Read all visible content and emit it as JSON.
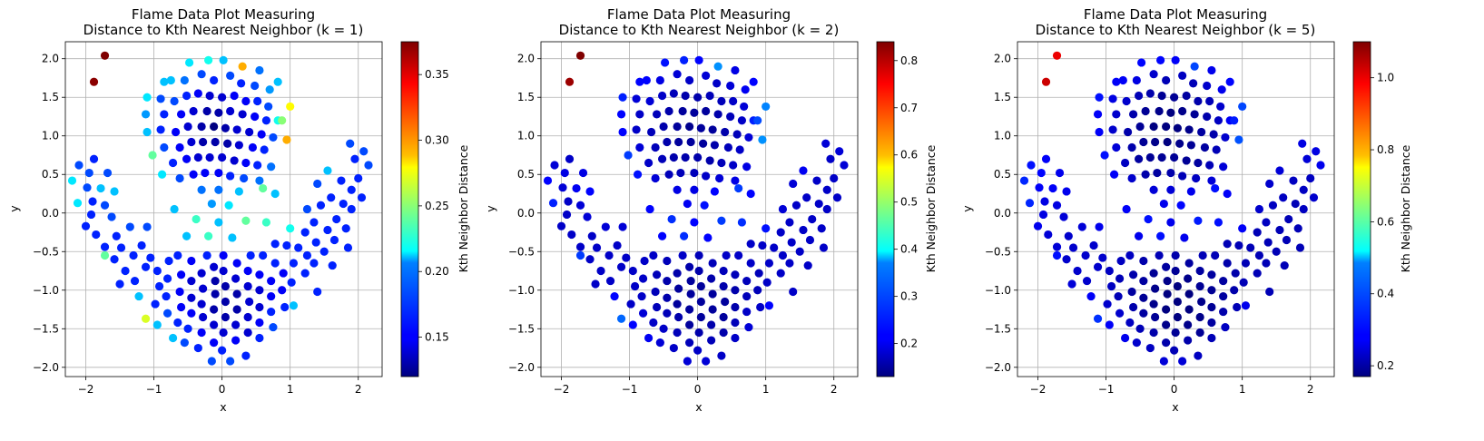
{
  "chart_data": [
    {
      "type": "scatter",
      "title": "Flame Data Plot Measuring\nDistance to Kth Nearest Neighbor (k = 1)",
      "xlabel": "x",
      "ylabel": "y",
      "xlim": [
        -2.3,
        2.35
      ],
      "ylim": [
        -2.12,
        2.22
      ],
      "xticks": [
        -2,
        -1,
        0,
        1,
        2
      ],
      "yticks": [
        -2.0,
        -1.5,
        -1.0,
        -0.5,
        0.0,
        0.5,
        1.0,
        1.5,
        2.0
      ],
      "grid": true,
      "colormap": "jet",
      "colorbar": {
        "label": "Kth Neighbor Distance",
        "min": 0.12,
        "max": 0.375,
        "ticks": [
          0.15,
          0.2,
          0.25,
          0.3,
          0.35
        ]
      }
    },
    {
      "type": "scatter",
      "title": "Flame Data Plot Measuring\nDistance to Kth Nearest Neighbor (k = 2)",
      "xlabel": "x",
      "ylabel": "y",
      "xlim": [
        -2.3,
        2.35
      ],
      "ylim": [
        -2.12,
        2.22
      ],
      "xticks": [
        -2,
        -1,
        0,
        1,
        2
      ],
      "yticks": [
        -2.0,
        -1.5,
        -1.0,
        -0.5,
        0.0,
        0.5,
        1.0,
        1.5,
        2.0
      ],
      "grid": true,
      "colormap": "jet",
      "colorbar": {
        "label": "Kth Neighbor Distance",
        "min": 0.13,
        "max": 0.84,
        "ticks": [
          0.2,
          0.3,
          0.4,
          0.5,
          0.6,
          0.7,
          0.8
        ]
      }
    },
    {
      "type": "scatter",
      "title": "Flame Data Plot Measuring\nDistance to Kth Nearest Neighbor (k = 5)",
      "xlabel": "x",
      "ylabel": "y",
      "xlim": [
        -2.3,
        2.35
      ],
      "ylim": [
        -2.12,
        2.22
      ],
      "xticks": [
        -2,
        -1,
        0,
        1,
        2
      ],
      "yticks": [
        -2.0,
        -1.5,
        -1.0,
        -0.5,
        0.0,
        0.5,
        1.0,
        1.5,
        2.0
      ],
      "grid": true,
      "colormap": "jet",
      "colorbar": {
        "label": "Kth Neighbor Distance",
        "min": 0.17,
        "max": 1.1,
        "ticks": [
          0.2,
          0.4,
          0.6,
          0.8,
          1.0
        ]
      }
    }
  ],
  "points": [
    [
      -1.72,
      2.04,
      0.375,
      0.84,
      1.0
    ],
    [
      -1.88,
      1.7,
      0.372,
      0.82,
      1.03
    ],
    [
      -2.2,
      0.42,
      0.21,
      0.22,
      0.32
    ],
    [
      -2.1,
      0.62,
      0.17,
      0.19,
      0.3
    ],
    [
      -1.95,
      0.52,
      0.17,
      0.2,
      0.29
    ],
    [
      -1.88,
      0.7,
      0.16,
      0.18,
      0.28
    ],
    [
      -1.98,
      0.33,
      0.17,
      0.19,
      0.28
    ],
    [
      -2.12,
      0.13,
      0.21,
      0.24,
      0.32
    ],
    [
      -1.9,
      0.15,
      0.16,
      0.18,
      0.26
    ],
    [
      -1.78,
      0.32,
      0.2,
      0.21,
      0.28
    ],
    [
      -1.68,
      0.52,
      0.17,
      0.2,
      0.27
    ],
    [
      -1.72,
      0.1,
      0.17,
      0.19,
      0.26
    ],
    [
      -1.92,
      -0.02,
      0.16,
      0.18,
      0.26
    ],
    [
      -2.0,
      -0.17,
      0.16,
      0.18,
      0.27
    ],
    [
      -1.85,
      -0.28,
      0.16,
      0.18,
      0.25
    ],
    [
      -1.62,
      -0.05,
      0.17,
      0.19,
      0.25
    ],
    [
      -1.58,
      0.28,
      0.2,
      0.22,
      0.27
    ],
    [
      -1.55,
      -0.3,
      0.16,
      0.18,
      0.24
    ],
    [
      -1.48,
      -0.45,
      0.16,
      0.18,
      0.24
    ],
    [
      -1.72,
      -0.44,
      0.16,
      0.18,
      0.25
    ],
    [
      -1.35,
      -0.18,
      0.17,
      0.19,
      0.25
    ],
    [
      -1.3,
      -0.55,
      0.16,
      0.18,
      0.24
    ],
    [
      -1.58,
      -0.6,
      0.16,
      0.18,
      0.24
    ],
    [
      -1.72,
      -0.55,
      0.24,
      0.26,
      0.3
    ],
    [
      -1.18,
      -0.42,
      0.16,
      0.18,
      0.24
    ],
    [
      -1.12,
      -0.7,
      0.16,
      0.18,
      0.24
    ],
    [
      -1.42,
      -0.75,
      0.16,
      0.18,
      0.24
    ],
    [
      -1.5,
      -0.92,
      0.16,
      0.18,
      0.25
    ],
    [
      -1.28,
      -0.88,
      0.16,
      0.18,
      0.24
    ],
    [
      -1.22,
      -1.08,
      0.2,
      0.22,
      0.28
    ],
    [
      -1.05,
      -0.58,
      0.16,
      0.18,
      0.24
    ],
    [
      -1.1,
      -0.18,
      0.17,
      0.19,
      0.27
    ],
    [
      -1.12,
      -1.37,
      0.27,
      0.29,
      0.33
    ],
    [
      -0.95,
      -1.45,
      0.2,
      0.22,
      0.28
    ],
    [
      -0.98,
      -1.18,
      0.16,
      0.18,
      0.24
    ],
    [
      -0.92,
      -0.95,
      0.16,
      0.18,
      0.23
    ],
    [
      -0.95,
      -0.75,
      0.16,
      0.18,
      0.23
    ],
    [
      -0.78,
      -0.62,
      0.16,
      0.18,
      0.23
    ],
    [
      -0.8,
      -0.85,
      0.16,
      0.18,
      0.22
    ],
    [
      -0.82,
      -1.08,
      0.16,
      0.18,
      0.22
    ],
    [
      -0.8,
      -1.3,
      0.17,
      0.19,
      0.24
    ],
    [
      -0.72,
      -1.62,
      0.2,
      0.21,
      0.27
    ],
    [
      -0.65,
      -1.42,
      0.16,
      0.18,
      0.23
    ],
    [
      -0.6,
      -1.22,
      0.15,
      0.17,
      0.21
    ],
    [
      -0.62,
      -1.02,
      0.15,
      0.17,
      0.2
    ],
    [
      -0.6,
      -0.8,
      0.15,
      0.17,
      0.21
    ],
    [
      -0.65,
      -0.55,
      0.16,
      0.18,
      0.23
    ],
    [
      -0.52,
      -0.3,
      0.2,
      0.22,
      0.27
    ],
    [
      -0.45,
      -0.62,
      0.15,
      0.17,
      0.21
    ],
    [
      -0.45,
      -0.88,
      0.14,
      0.16,
      0.2
    ],
    [
      -0.45,
      -1.1,
      0.14,
      0.16,
      0.19
    ],
    [
      -0.45,
      -1.3,
      0.15,
      0.17,
      0.2
    ],
    [
      -0.5,
      -1.5,
      0.16,
      0.18,
      0.22
    ],
    [
      -0.55,
      -1.68,
      0.17,
      0.19,
      0.24
    ],
    [
      -0.35,
      -1.75,
      0.16,
      0.18,
      0.23
    ],
    [
      -0.3,
      -1.55,
      0.15,
      0.17,
      0.21
    ],
    [
      -0.28,
      -1.35,
      0.14,
      0.16,
      0.19
    ],
    [
      -0.3,
      -1.18,
      0.14,
      0.15,
      0.18
    ],
    [
      -0.28,
      -0.98,
      0.14,
      0.15,
      0.18
    ],
    [
      -0.3,
      -0.78,
      0.14,
      0.16,
      0.19
    ],
    [
      -0.22,
      -0.55,
      0.16,
      0.18,
      0.22
    ],
    [
      -0.15,
      -1.92,
      0.17,
      0.19,
      0.25
    ],
    [
      -0.12,
      -1.68,
      0.15,
      0.17,
      0.21
    ],
    [
      -0.12,
      -1.45,
      0.14,
      0.15,
      0.18
    ],
    [
      -0.12,
      -1.25,
      0.13,
      0.15,
      0.17
    ],
    [
      -0.1,
      -1.05,
      0.13,
      0.15,
      0.17
    ],
    [
      -0.1,
      -0.88,
      0.13,
      0.15,
      0.18
    ],
    [
      -0.12,
      -0.7,
      0.14,
      0.16,
      0.2
    ],
    [
      0.0,
      -1.78,
      0.16,
      0.18,
      0.22
    ],
    [
      0.02,
      -1.55,
      0.14,
      0.16,
      0.19
    ],
    [
      0.05,
      -1.35,
      0.13,
      0.15,
      0.17
    ],
    [
      0.05,
      -1.15,
      0.13,
      0.15,
      0.17
    ],
    [
      0.05,
      -0.95,
      0.13,
      0.15,
      0.17
    ],
    [
      0.02,
      -0.75,
      0.14,
      0.16,
      0.19
    ],
    [
      0.02,
      -0.55,
      0.15,
      0.17,
      0.21
    ],
    [
      0.12,
      -1.92,
      0.17,
      0.19,
      0.25
    ],
    [
      0.2,
      -1.65,
      0.15,
      0.17,
      0.21
    ],
    [
      0.2,
      -1.45,
      0.14,
      0.16,
      0.18
    ],
    [
      0.22,
      -1.25,
      0.13,
      0.15,
      0.17
    ],
    [
      0.22,
      -1.05,
      0.13,
      0.15,
      0.17
    ],
    [
      0.2,
      -0.85,
      0.14,
      0.16,
      0.18
    ],
    [
      0.22,
      -0.65,
      0.15,
      0.17,
      0.2
    ],
    [
      0.35,
      -1.85,
      0.16,
      0.18,
      0.23
    ],
    [
      0.38,
      -1.55,
      0.14,
      0.16,
      0.19
    ],
    [
      0.38,
      -1.35,
      0.14,
      0.15,
      0.18
    ],
    [
      0.4,
      -1.15,
      0.14,
      0.15,
      0.18
    ],
    [
      0.38,
      -0.95,
      0.14,
      0.16,
      0.19
    ],
    [
      0.38,
      -0.75,
      0.15,
      0.17,
      0.2
    ],
    [
      0.42,
      -0.55,
      0.16,
      0.18,
      0.22
    ],
    [
      0.55,
      -1.62,
      0.16,
      0.18,
      0.22
    ],
    [
      0.55,
      -1.42,
      0.15,
      0.17,
      0.2
    ],
    [
      0.55,
      -1.22,
      0.14,
      0.16,
      0.19
    ],
    [
      0.55,
      -1.0,
      0.14,
      0.16,
      0.19
    ],
    [
      0.55,
      -0.8,
      0.15,
      0.17,
      0.2
    ],
    [
      0.6,
      -0.55,
      0.16,
      0.18,
      0.22
    ],
    [
      0.72,
      -1.28,
      0.16,
      0.18,
      0.21
    ],
    [
      0.72,
      -1.08,
      0.15,
      0.17,
      0.2
    ],
    [
      0.72,
      -0.88,
      0.15,
      0.17,
      0.2
    ],
    [
      0.78,
      -0.65,
      0.16,
      0.18,
      0.21
    ],
    [
      0.75,
      -1.48,
      0.17,
      0.19,
      0.23
    ],
    [
      0.88,
      -1.0,
      0.15,
      0.17,
      0.21
    ],
    [
      0.9,
      -0.78,
      0.15,
      0.17,
      0.21
    ],
    [
      0.92,
      -1.22,
      0.16,
      0.18,
      0.22
    ],
    [
      0.78,
      -0.4,
      0.16,
      0.18,
      0.22
    ],
    [
      1.05,
      -1.2,
      0.2,
      0.22,
      0.27
    ],
    [
      1.02,
      -0.9,
      0.16,
      0.18,
      0.22
    ],
    [
      1.05,
      -0.65,
      0.16,
      0.18,
      0.22
    ],
    [
      1.12,
      -0.45,
      0.16,
      0.18,
      0.22
    ],
    [
      0.95,
      -0.42,
      0.16,
      0.18,
      0.22
    ],
    [
      1.22,
      -0.78,
      0.16,
      0.18,
      0.22
    ],
    [
      1.25,
      -0.55,
      0.16,
      0.18,
      0.22
    ],
    [
      1.22,
      -0.25,
      0.16,
      0.18,
      0.22
    ],
    [
      1.35,
      -0.65,
      0.16,
      0.18,
      0.22
    ],
    [
      1.38,
      -0.38,
      0.16,
      0.18,
      0.22
    ],
    [
      1.35,
      -0.12,
      0.16,
      0.18,
      0.23
    ],
    [
      1.4,
      -1.02,
      0.16,
      0.18,
      0.22
    ],
    [
      1.5,
      -0.5,
      0.16,
      0.18,
      0.22
    ],
    [
      1.55,
      -0.22,
      0.16,
      0.18,
      0.22
    ],
    [
      1.45,
      0.1,
      0.16,
      0.18,
      0.23
    ],
    [
      1.62,
      -0.68,
      0.16,
      0.18,
      0.22
    ],
    [
      1.65,
      -0.35,
      0.16,
      0.18,
      0.22
    ],
    [
      1.68,
      -0.08,
      0.16,
      0.18,
      0.22
    ],
    [
      1.6,
      0.2,
      0.16,
      0.18,
      0.23
    ],
    [
      1.75,
      0.42,
      0.16,
      0.18,
      0.23
    ],
    [
      1.78,
      0.12,
      0.16,
      0.18,
      0.22
    ],
    [
      1.82,
      -0.2,
      0.16,
      0.18,
      0.22
    ],
    [
      1.85,
      -0.45,
      0.16,
      0.18,
      0.22
    ],
    [
      1.9,
      0.05,
      0.16,
      0.18,
      0.23
    ],
    [
      1.9,
      0.3,
      0.16,
      0.18,
      0.23
    ],
    [
      2.0,
      0.45,
      0.16,
      0.18,
      0.23
    ],
    [
      2.05,
      0.2,
      0.16,
      0.18,
      0.24
    ],
    [
      1.95,
      0.7,
      0.16,
      0.18,
      0.25
    ],
    [
      2.08,
      0.8,
      0.17,
      0.19,
      0.26
    ],
    [
      2.15,
      0.62,
      0.17,
      0.19,
      0.27
    ],
    [
      1.88,
      0.9,
      0.17,
      0.19,
      0.26
    ],
    [
      1.55,
      0.55,
      0.2,
      0.21,
      0.25
    ],
    [
      1.0,
      -0.2,
      0.22,
      0.23,
      0.28
    ],
    [
      1.4,
      0.38,
      0.17,
      0.19,
      0.24
    ],
    [
      1.25,
      0.05,
      0.17,
      0.19,
      0.24
    ],
    [
      -0.2,
      1.98,
      0.22,
      0.24,
      0.29
    ],
    [
      0.02,
      1.98,
      0.2,
      0.22,
      0.28
    ],
    [
      -0.48,
      1.95,
      0.21,
      0.23,
      0.29
    ],
    [
      0.3,
      1.9,
      0.3,
      0.32,
      0.35
    ],
    [
      0.55,
      1.85,
      0.18,
      0.2,
      0.27
    ],
    [
      -0.75,
      1.72,
      0.2,
      0.22,
      0.28
    ],
    [
      -0.55,
      1.72,
      0.18,
      0.2,
      0.26
    ],
    [
      -0.3,
      1.8,
      0.17,
      0.19,
      0.24
    ],
    [
      -0.12,
      1.72,
      0.16,
      0.18,
      0.22
    ],
    [
      0.12,
      1.78,
      0.17,
      0.19,
      0.23
    ],
    [
      0.28,
      1.68,
      0.16,
      0.18,
      0.22
    ],
    [
      0.48,
      1.65,
      0.17,
      0.19,
      0.24
    ],
    [
      0.7,
      1.6,
      0.19,
      0.21,
      0.27
    ],
    [
      0.82,
      1.7,
      0.2,
      0.22,
      0.29
    ],
    [
      -1.1,
      1.5,
      0.21,
      0.24,
      0.3
    ],
    [
      -0.9,
      1.48,
      0.17,
      0.19,
      0.26
    ],
    [
      -0.7,
      1.45,
      0.17,
      0.19,
      0.24
    ],
    [
      -0.52,
      1.52,
      0.16,
      0.18,
      0.22
    ],
    [
      -0.35,
      1.55,
      0.15,
      0.17,
      0.21
    ],
    [
      -0.18,
      1.52,
      0.14,
      0.16,
      0.19
    ],
    [
      0.0,
      1.5,
      0.14,
      0.16,
      0.19
    ],
    [
      0.18,
      1.52,
      0.15,
      0.17,
      0.2
    ],
    [
      0.35,
      1.45,
      0.15,
      0.17,
      0.21
    ],
    [
      0.52,
      1.45,
      0.16,
      0.18,
      0.22
    ],
    [
      0.68,
      1.38,
      0.17,
      0.19,
      0.24
    ],
    [
      1.0,
      1.38,
      0.28,
      0.31,
      0.35
    ],
    [
      -1.12,
      1.28,
      0.19,
      0.22,
      0.28
    ],
    [
      -0.85,
      1.28,
      0.16,
      0.18,
      0.24
    ],
    [
      -0.6,
      1.28,
      0.15,
      0.17,
      0.21
    ],
    [
      -0.42,
      1.32,
      0.14,
      0.16,
      0.19
    ],
    [
      -0.22,
      1.32,
      0.13,
      0.15,
      0.18
    ],
    [
      -0.05,
      1.3,
      0.13,
      0.15,
      0.17
    ],
    [
      0.12,
      1.32,
      0.14,
      0.15,
      0.18
    ],
    [
      0.3,
      1.28,
      0.14,
      0.16,
      0.19
    ],
    [
      0.48,
      1.25,
      0.15,
      0.17,
      0.21
    ],
    [
      0.65,
      1.2,
      0.16,
      0.18,
      0.23
    ],
    [
      0.82,
      1.2,
      0.22,
      0.24,
      0.28
    ],
    [
      -1.1,
      1.05,
      0.2,
      0.22,
      0.28
    ],
    [
      -0.9,
      1.08,
      0.16,
      0.18,
      0.24
    ],
    [
      -0.68,
      1.05,
      0.15,
      0.17,
      0.21
    ],
    [
      -0.5,
      1.12,
      0.14,
      0.16,
      0.19
    ],
    [
      -0.3,
      1.12,
      0.13,
      0.15,
      0.17
    ],
    [
      -0.12,
      1.12,
      0.12,
      0.14,
      0.17
    ],
    [
      0.05,
      1.1,
      0.13,
      0.15,
      0.17
    ],
    [
      0.22,
      1.08,
      0.14,
      0.15,
      0.18
    ],
    [
      0.4,
      1.05,
      0.14,
      0.16,
      0.2
    ],
    [
      0.58,
      1.02,
      0.15,
      0.17,
      0.21
    ],
    [
      0.75,
      0.98,
      0.17,
      0.19,
      0.24
    ],
    [
      0.95,
      0.95,
      0.3,
      0.32,
      0.36
    ],
    [
      -0.85,
      0.85,
      0.17,
      0.19,
      0.25
    ],
    [
      -0.62,
      0.85,
      0.15,
      0.17,
      0.21
    ],
    [
      -0.45,
      0.92,
      0.14,
      0.16,
      0.19
    ],
    [
      -0.28,
      0.92,
      0.13,
      0.15,
      0.18
    ],
    [
      -0.1,
      0.92,
      0.13,
      0.15,
      0.17
    ],
    [
      0.08,
      0.9,
      0.13,
      0.15,
      0.18
    ],
    [
      0.25,
      0.88,
      0.14,
      0.16,
      0.19
    ],
    [
      0.45,
      0.85,
      0.15,
      0.17,
      0.2
    ],
    [
      0.62,
      0.82,
      0.16,
      0.18,
      0.22
    ],
    [
      -1.02,
      0.75,
      0.24,
      0.26,
      0.3
    ],
    [
      -0.72,
      0.65,
      0.16,
      0.18,
      0.23
    ],
    [
      -0.52,
      0.7,
      0.15,
      0.17,
      0.2
    ],
    [
      -0.35,
      0.72,
      0.14,
      0.16,
      0.19
    ],
    [
      -0.18,
      0.72,
      0.14,
      0.16,
      0.19
    ],
    [
      0.0,
      0.72,
      0.14,
      0.16,
      0.19
    ],
    [
      0.18,
      0.68,
      0.14,
      0.16,
      0.19
    ],
    [
      0.35,
      0.65,
      0.15,
      0.17,
      0.2
    ],
    [
      0.52,
      0.62,
      0.16,
      0.18,
      0.22
    ],
    [
      0.72,
      0.6,
      0.18,
      0.2,
      0.25
    ],
    [
      -0.88,
      0.5,
      0.21,
      0.23,
      0.28
    ],
    [
      -0.62,
      0.45,
      0.17,
      0.19,
      0.24
    ],
    [
      -0.42,
      0.5,
      0.15,
      0.17,
      0.21
    ],
    [
      -0.25,
      0.52,
      0.15,
      0.17,
      0.2
    ],
    [
      -0.05,
      0.52,
      0.15,
      0.17,
      0.21
    ],
    [
      0.12,
      0.48,
      0.16,
      0.18,
      0.22
    ],
    [
      0.32,
      0.45,
      0.17,
      0.19,
      0.23
    ],
    [
      0.55,
      0.42,
      0.18,
      0.2,
      0.25
    ],
    [
      0.78,
      0.25,
      0.2,
      0.22,
      0.28
    ],
    [
      -0.3,
      0.3,
      0.18,
      0.2,
      0.25
    ],
    [
      -0.05,
      0.3,
      0.18,
      0.2,
      0.25
    ],
    [
      0.25,
      0.28,
      0.2,
      0.22,
      0.27
    ],
    [
      -0.15,
      0.12,
      0.19,
      0.21,
      0.27
    ],
    [
      0.1,
      0.1,
      0.21,
      0.23,
      0.29
    ],
    [
      -0.7,
      0.05,
      0.2,
      0.22,
      0.28
    ],
    [
      -0.38,
      -0.08,
      0.23,
      0.25,
      0.3
    ],
    [
      -0.05,
      -0.12,
      0.2,
      0.22,
      0.27
    ],
    [
      0.35,
      -0.1,
      0.24,
      0.26,
      0.31
    ],
    [
      0.65,
      -0.12,
      0.23,
      0.25,
      0.3
    ],
    [
      -0.2,
      -0.3,
      0.23,
      0.25,
      0.3
    ],
    [
      0.15,
      -0.32,
      0.2,
      0.22,
      0.27
    ],
    [
      0.6,
      0.32,
      0.24,
      0.26,
      0.3
    ],
    [
      0.88,
      1.2,
      0.25,
      0.27,
      0.31
    ],
    [
      -0.85,
      1.7,
      0.2,
      0.22,
      0.28
    ]
  ]
}
